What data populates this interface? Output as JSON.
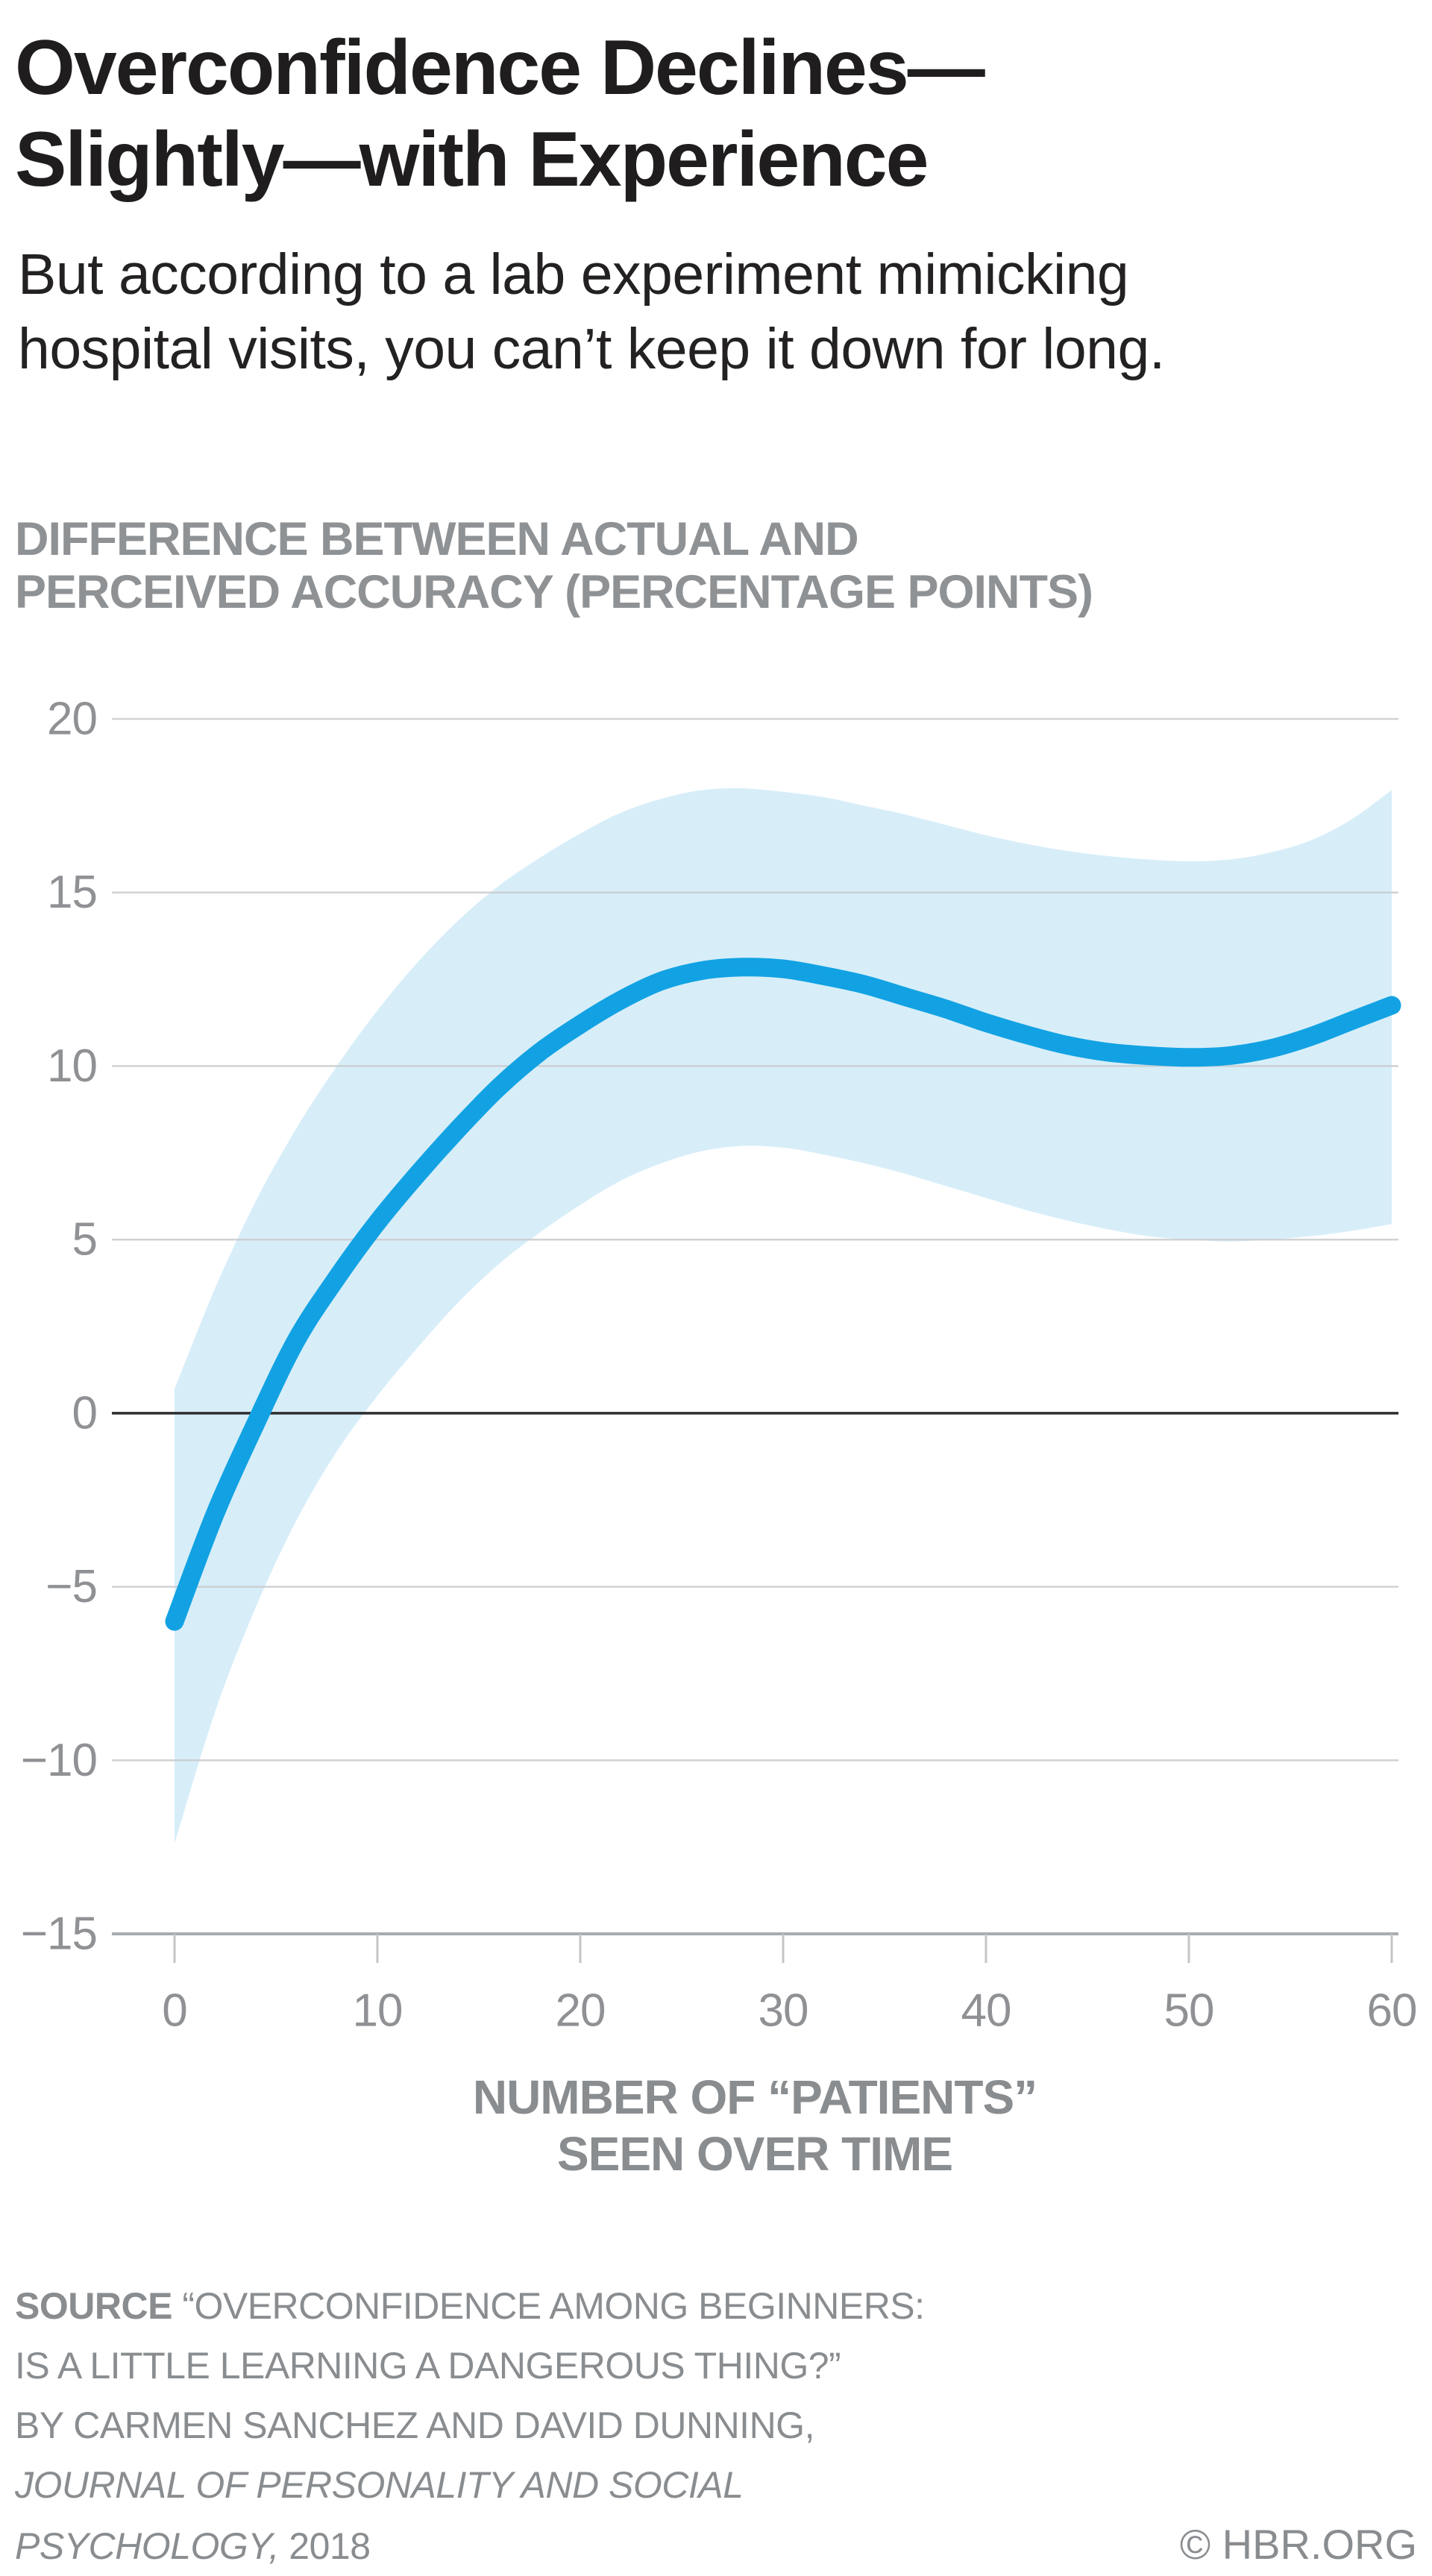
{
  "title": {
    "line1": "Overconfidence Declines—",
    "line2": "Slightly—with Experience"
  },
  "subtitle": {
    "line1": "But according to a lab experiment mimicking",
    "line2": "hospital visits, you can’t keep it down for long."
  },
  "chart": {
    "heading_line1": "DIFFERENCE BETWEEN ACTUAL AND",
    "heading_line2": "PERCEIVED ACCURACY (PERCENTAGE POINTS)",
    "x_axis_title_line1": "NUMBER OF “PATIENTS”",
    "x_axis_title_line2": "SEEN OVER TIME"
  },
  "source": {
    "label": "SOURCE",
    "line1_rest": "  “OVERCONFIDENCE AMONG BEGINNERS:",
    "line2": "IS A LITTLE LEARNING A DANGEROUS THING?”",
    "line3": "BY CARMEN SANCHEZ AND DAVID DUNNING,",
    "line4_italic": "JOURNAL OF PERSONALITY AND SOCIAL",
    "line5_italic": "PSYCHOLOGY,",
    "line5_rest": " 2018",
    "credit": "© HBR.ORG"
  },
  "colors": {
    "line": "#12a2e3",
    "band": "#d7eef9",
    "gridline": "#c9cbcd",
    "zero_line": "#2d2d2f",
    "axis_line": "#a9acae",
    "tick_mark": "#c3c5c7",
    "tick_label": "#8f9194",
    "text_dark": "#1f1d1e",
    "text_gray": "#8a8d90"
  },
  "chart_data": {
    "type": "line",
    "title": "DIFFERENCE BETWEEN ACTUAL AND PERCEIVED ACCURACY (PERCENTAGE POINTS)",
    "xlabel": "NUMBER OF “PATIENTS” SEEN OVER TIME",
    "ylabel": "DIFFERENCE BETWEEN ACTUAL AND PERCEIVED ACCURACY (PERCENTAGE POINTS)",
    "xlim": [
      0,
      60
    ],
    "ylim": [
      -15,
      20
    ],
    "grid": true,
    "legend": "none",
    "x_ticks": {
      "values": [
        0,
        10,
        20,
        30,
        40,
        50,
        60
      ],
      "labels": [
        "0",
        "10",
        "20",
        "30",
        "40",
        "50",
        "60"
      ]
    },
    "y_ticks": {
      "values": [
        20,
        15,
        10,
        5,
        0,
        -5,
        -10,
        -15
      ],
      "labels": [
        "20",
        "15",
        "10",
        "5",
        "0",
        "−5",
        "−10",
        "−15"
      ]
    },
    "series": [
      {
        "name": "estimate",
        "points": [
          [
            0,
            -6.0
          ],
          [
            2,
            -2.9
          ],
          [
            4,
            -0.3
          ],
          [
            6,
            2.1
          ],
          [
            8,
            3.9
          ],
          [
            10,
            5.5
          ],
          [
            12,
            6.9
          ],
          [
            14,
            8.2
          ],
          [
            16,
            9.4
          ],
          [
            18,
            10.4
          ],
          [
            20,
            11.2
          ],
          [
            22,
            11.9
          ],
          [
            24,
            12.45
          ],
          [
            26,
            12.75
          ],
          [
            28,
            12.85
          ],
          [
            30,
            12.8
          ],
          [
            32,
            12.6
          ],
          [
            34,
            12.35
          ],
          [
            36,
            12.0
          ],
          [
            38,
            11.65
          ],
          [
            40,
            11.25
          ],
          [
            42,
            10.9
          ],
          [
            44,
            10.6
          ],
          [
            46,
            10.4
          ],
          [
            48,
            10.3
          ],
          [
            50,
            10.25
          ],
          [
            52,
            10.3
          ],
          [
            54,
            10.5
          ],
          [
            56,
            10.85
          ],
          [
            58,
            11.3
          ],
          [
            60,
            11.75
          ]
        ]
      },
      {
        "name": "confidence-upper",
        "points": [
          [
            0,
            0.7
          ],
          [
            2,
            3.6
          ],
          [
            4,
            6.1
          ],
          [
            6,
            8.2
          ],
          [
            8,
            10.0
          ],
          [
            10,
            11.6
          ],
          [
            12,
            13.0
          ],
          [
            14,
            14.2
          ],
          [
            16,
            15.2
          ],
          [
            18,
            16.0
          ],
          [
            20,
            16.7
          ],
          [
            22,
            17.3
          ],
          [
            24,
            17.7
          ],
          [
            26,
            17.95
          ],
          [
            28,
            18.0
          ],
          [
            30,
            17.9
          ],
          [
            32,
            17.75
          ],
          [
            34,
            17.5
          ],
          [
            36,
            17.25
          ],
          [
            38,
            16.95
          ],
          [
            40,
            16.65
          ],
          [
            42,
            16.4
          ],
          [
            44,
            16.2
          ],
          [
            46,
            16.05
          ],
          [
            48,
            15.95
          ],
          [
            50,
            15.9
          ],
          [
            52,
            15.95
          ],
          [
            54,
            16.15
          ],
          [
            56,
            16.5
          ],
          [
            58,
            17.1
          ],
          [
            60,
            17.95
          ]
        ]
      },
      {
        "name": "confidence-lower",
        "points": [
          [
            0,
            -12.4
          ],
          [
            2,
            -8.6
          ],
          [
            4,
            -5.6
          ],
          [
            6,
            -3.1
          ],
          [
            8,
            -1.1
          ],
          [
            10,
            0.5
          ],
          [
            12,
            1.9
          ],
          [
            14,
            3.2
          ],
          [
            16,
            4.3
          ],
          [
            18,
            5.2
          ],
          [
            20,
            6.0
          ],
          [
            22,
            6.7
          ],
          [
            24,
            7.2
          ],
          [
            26,
            7.55
          ],
          [
            28,
            7.7
          ],
          [
            30,
            7.65
          ],
          [
            32,
            7.45
          ],
          [
            34,
            7.2
          ],
          [
            36,
            6.9
          ],
          [
            38,
            6.55
          ],
          [
            40,
            6.2
          ],
          [
            42,
            5.85
          ],
          [
            44,
            5.55
          ],
          [
            46,
            5.3
          ],
          [
            48,
            5.1
          ],
          [
            50,
            5.0
          ],
          [
            52,
            4.95
          ],
          [
            54,
            5.0
          ],
          [
            56,
            5.1
          ],
          [
            58,
            5.25
          ],
          [
            60,
            5.45
          ]
        ]
      }
    ]
  }
}
